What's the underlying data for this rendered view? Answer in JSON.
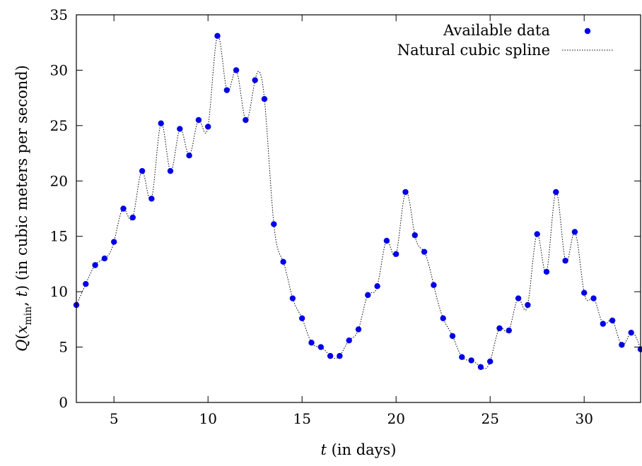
{
  "chart_data": {
    "type": "scatter",
    "xlabel": "t (in days)",
    "ylabel": "Q(x_min, t) (in cubic meters per second)",
    "xlim": [
      3,
      33
    ],
    "ylim": [
      0,
      35
    ],
    "x_ticks": [
      5,
      10,
      15,
      20,
      25,
      30
    ],
    "y_ticks": [
      0,
      5,
      10,
      15,
      20,
      25,
      30,
      35
    ],
    "grid": false,
    "legend_position": "top-right",
    "series": [
      {
        "name": "Available data",
        "style": "points",
        "color": "#0000e6",
        "x": [
          3,
          3.5,
          4,
          4.5,
          5,
          5.5,
          6,
          6.5,
          7,
          7.5,
          8,
          8.5,
          9,
          9.5,
          10,
          10.5,
          11,
          11.5,
          12,
          12.5,
          13,
          13.5,
          14,
          14.5,
          15,
          15.5,
          16,
          16.5,
          17,
          17.5,
          18,
          18.5,
          19,
          19.5,
          20,
          20.5,
          21,
          21.5,
          22,
          22.5,
          23,
          23.5,
          24,
          24.5,
          25,
          25.5,
          26,
          26.5,
          27,
          27.5,
          28,
          28.5,
          29,
          29.5,
          30,
          30.5,
          31,
          31.5,
          32,
          32.5,
          33
        ],
        "y": [
          8.8,
          10.7,
          12.4,
          13.0,
          14.5,
          17.5,
          16.7,
          20.9,
          18.4,
          25.2,
          20.9,
          24.7,
          22.3,
          25.5,
          24.9,
          33.1,
          28.2,
          30.0,
          25.5,
          29.1,
          27.4,
          16.1,
          12.7,
          9.4,
          7.6,
          5.4,
          5.0,
          4.2,
          4.2,
          5.6,
          6.6,
          9.7,
          10.5,
          14.6,
          13.4,
          19.0,
          15.1,
          13.6,
          10.6,
          7.6,
          6.0,
          4.1,
          3.8,
          3.2,
          3.7,
          6.7,
          6.5,
          9.4,
          8.8,
          15.2,
          11.8,
          19.0,
          12.8,
          15.4,
          9.9,
          9.4,
          7.1,
          7.4,
          5.2,
          6.3,
          4.8
        ]
      },
      {
        "name": "Natural cubic spline",
        "style": "dotted-line",
        "color": "#000000"
      }
    ]
  }
}
